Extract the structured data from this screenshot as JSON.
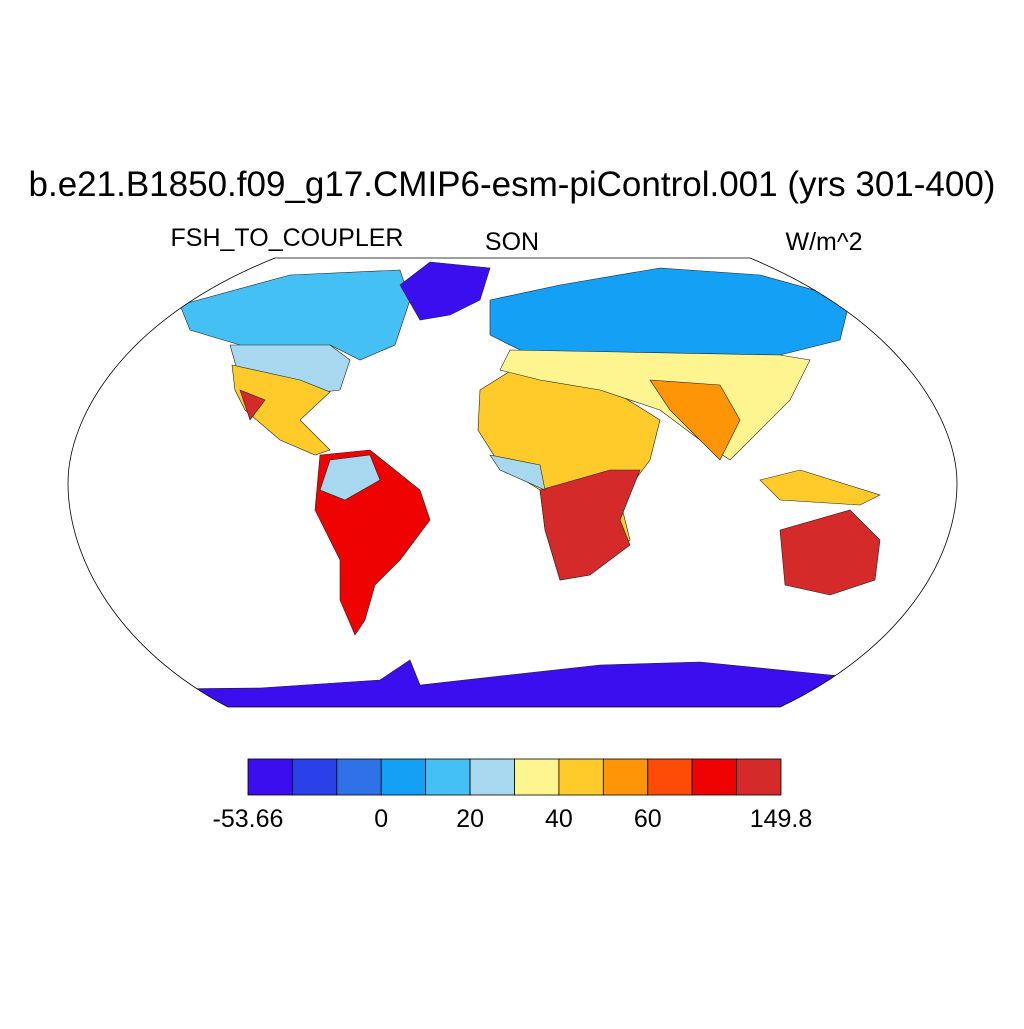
{
  "header": {
    "title": "b.e21.B1850.f09_g17.CMIP6-esm-piControl.001 (yrs 301-400)",
    "left": "FSH_TO_COUPLER",
    "center": "SON",
    "right": "W/m^2"
  },
  "colorbar": {
    "colors": [
      "#3b0ef0",
      "#2a40e8",
      "#2f72e8",
      "#14a0f5",
      "#45c0f5",
      "#a8d8f0",
      "#fef591",
      "#fecb2a",
      "#fe9506",
      "#fe4b06",
      "#ee0202",
      "#d42a2a"
    ],
    "labels": [
      "-53.66",
      "0",
      "20",
      "40",
      "60",
      "149.8"
    ]
  }
}
